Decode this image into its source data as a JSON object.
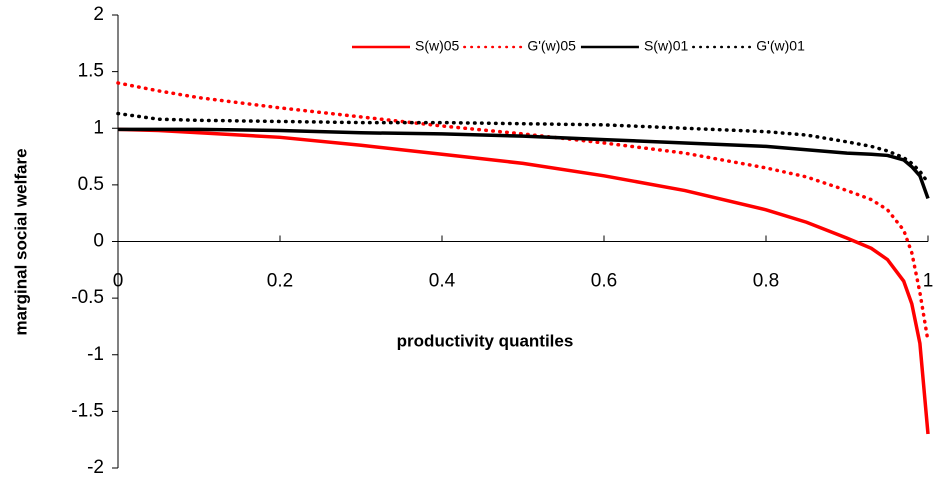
{
  "chart_data": {
    "type": "line",
    "x_label": "productivity quantiles",
    "y_label": "marginal social welfare",
    "x": [
      0,
      0.05,
      0.1,
      0.2,
      0.3,
      0.4,
      0.5,
      0.6,
      0.7,
      0.8,
      0.85,
      0.9,
      0.93,
      0.95,
      0.97,
      0.98,
      0.99,
      1
    ],
    "series": [
      {
        "name": "S(w)05",
        "color": "#ff0000",
        "dash": "solid",
        "values": [
          0.99,
          0.98,
          0.96,
          0.92,
          0.85,
          0.77,
          0.69,
          0.58,
          0.45,
          0.28,
          0.17,
          0.03,
          -0.06,
          -0.16,
          -0.35,
          -0.55,
          -0.9,
          -1.7
        ]
      },
      {
        "name": "G'(w)05",
        "color": "#ff0000",
        "dash": "dotted",
        "values": [
          1.4,
          1.33,
          1.27,
          1.18,
          1.1,
          1.02,
          0.95,
          0.87,
          0.78,
          0.65,
          0.57,
          0.45,
          0.37,
          0.28,
          0.1,
          -0.1,
          -0.45,
          -0.88
        ]
      },
      {
        "name": "S(w)01",
        "color": "#000000",
        "dash": "solid",
        "values": [
          0.99,
          0.99,
          0.99,
          0.98,
          0.96,
          0.95,
          0.93,
          0.9,
          0.87,
          0.84,
          0.81,
          0.78,
          0.77,
          0.76,
          0.72,
          0.66,
          0.58,
          0.38
        ]
      },
      {
        "name": "G'(w)01",
        "color": "#000000",
        "dash": "dotted",
        "values": [
          1.13,
          1.08,
          1.07,
          1.06,
          1.05,
          1.05,
          1.04,
          1.03,
          1.0,
          0.97,
          0.94,
          0.88,
          0.84,
          0.8,
          0.74,
          0.69,
          0.62,
          0.52
        ]
      }
    ],
    "xlim": [
      0,
      1
    ],
    "xticks": [
      0,
      0.2,
      0.4,
      0.6,
      0.8,
      1
    ],
    "ylim": [
      -2,
      2
    ],
    "yticks": [
      -2,
      -1.5,
      -1,
      -0.5,
      0,
      0.5,
      1,
      1.5,
      2
    ],
    "legend": "top"
  }
}
